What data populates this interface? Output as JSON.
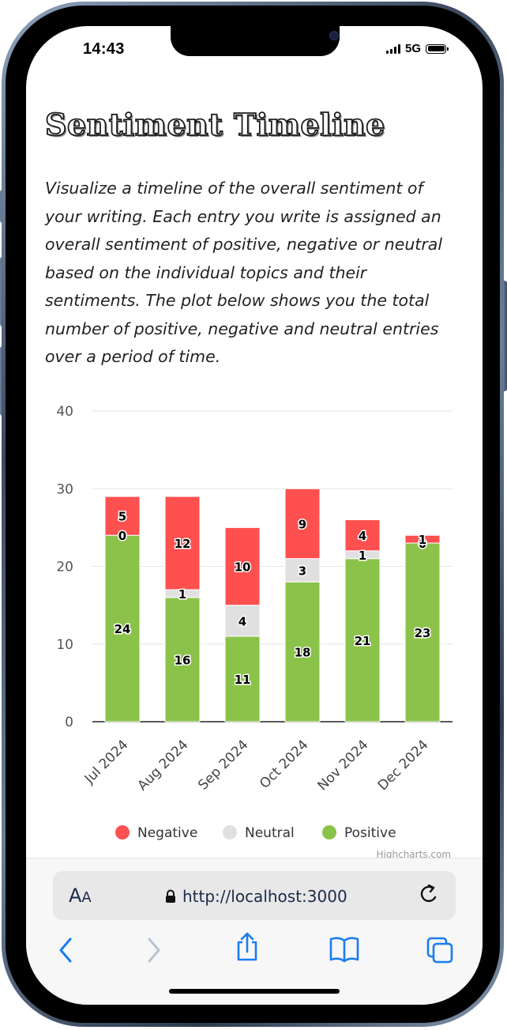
{
  "status_bar": {
    "time": "14:43",
    "network": "5G",
    "icons": [
      "signal-bars-icon",
      "battery-icon"
    ]
  },
  "page": {
    "title": "Sentiment Timeline",
    "description": "Visualize a timeline of the overall sentiment of your writing. Each entry you write is assigned an overall sentiment of positive, negative or neutral based on the individual topics and their sentiments. The plot below shows you the total number of positive, negative and neutral entries over a period of time."
  },
  "chart_data": {
    "type": "bar",
    "stacked": true,
    "categories": [
      "Jul 2024",
      "Aug 2024",
      "Sep 2024",
      "Oct 2024",
      "Nov 2024",
      "Dec 2024"
    ],
    "series": [
      {
        "name": "Negative",
        "color": "#ff5050",
        "values": [
          5,
          12,
          10,
          9,
          4,
          1
        ]
      },
      {
        "name": "Neutral",
        "color": "#e0e0e0",
        "values": [
          0,
          1,
          4,
          3,
          1,
          0
        ]
      },
      {
        "name": "Positive",
        "color": "#8bc34a",
        "values": [
          24,
          16,
          11,
          18,
          21,
          23
        ]
      }
    ],
    "yticks": [
      0,
      10,
      20,
      30,
      40
    ],
    "ylim": [
      0,
      40
    ],
    "grid": true,
    "legend": "bottom",
    "credit": "Highcharts.com"
  },
  "browser": {
    "text_size_label": "A",
    "text_size_label_small": "A",
    "url": "http://localhost:3000",
    "icons": [
      "lock-icon",
      "reload-icon",
      "back-icon",
      "forward-icon",
      "share-icon",
      "bookmarks-icon",
      "tabs-icon"
    ]
  }
}
